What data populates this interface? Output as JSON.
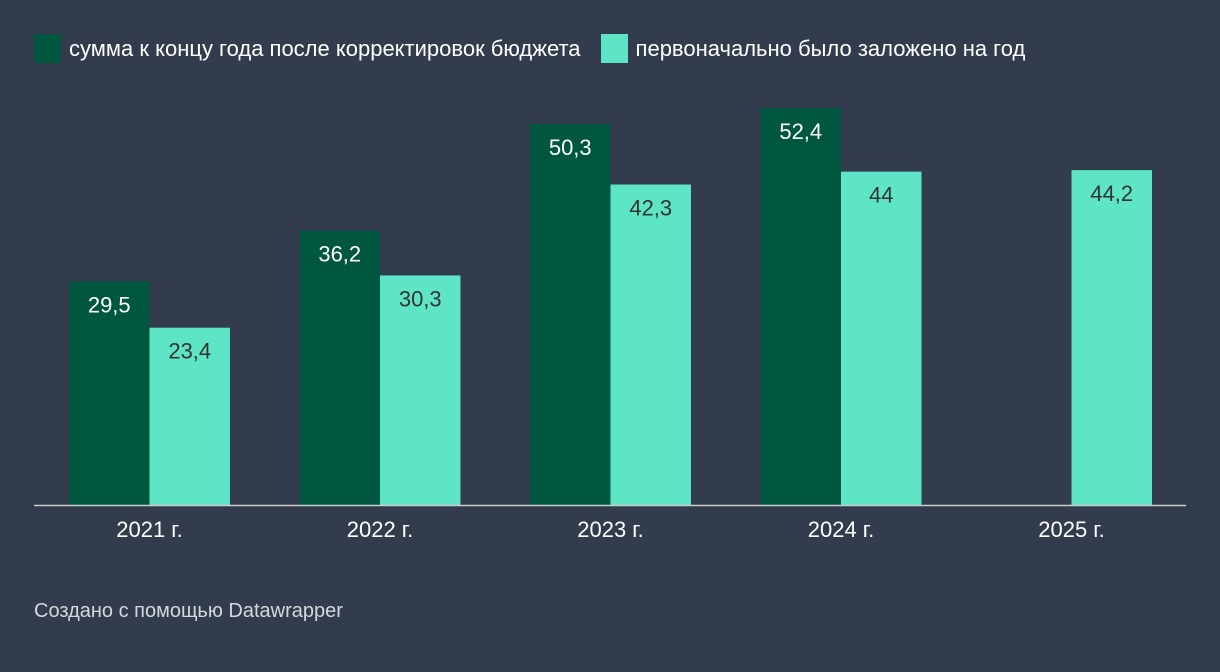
{
  "chart_data": {
    "type": "bar",
    "categories": [
      "2021 г.",
      "2022 г.",
      "2023 г.",
      "2024 г.",
      "2025 г."
    ],
    "series": [
      {
        "name": "сумма к концу года после корректировок бюджета",
        "values": [
          29.5,
          36.2,
          50.3,
          52.4,
          null
        ],
        "labels": [
          "29,5",
          "36,2",
          "50,3",
          "52,4",
          ""
        ],
        "color": "#00573f"
      },
      {
        "name": "первоначально было заложено на год",
        "values": [
          23.4,
          30.3,
          42.3,
          44,
          44.2
        ],
        "labels": [
          "23,4",
          "30,3",
          "42,3",
          "44",
          "44,2"
        ],
        "color": "#5ee5c6"
      }
    ],
    "ylim": [
      0,
      52.4
    ],
    "grid": false,
    "legend_position": "top-left"
  },
  "footer": {
    "credit": "Создано с помощью Datawrapper"
  },
  "colors": {
    "background": "#333c4c",
    "axis": "#cccccc",
    "text": "#ffffff"
  }
}
